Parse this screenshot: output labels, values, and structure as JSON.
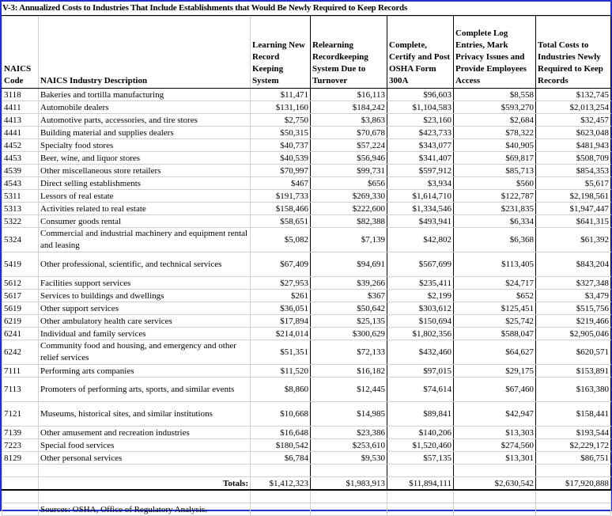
{
  "title": "V-3: Annualized Costs to Industries That Include Establishments that Would Be Newly Required to Keep Records",
  "headers": [
    "NAICS Code",
    "NAICS Industry Description",
    "Learning New Record Keeping System",
    "Relearning Recordkeeping System Due to Turnover",
    "Complete, Certify and Post OSHA Form 300A",
    "Complete Log Entries, Mark Privacy Issues and Provide Employees Access",
    "Total Costs to Industries Newly Required to Keep Records"
  ],
  "rows": [
    [
      "3118",
      "Bakeries and tortilla manufacturing",
      "$11,471",
      "$16,113",
      "$96,603",
      "$8,558",
      "$132,745"
    ],
    [
      "4411",
      "Automobile dealers",
      "$131,160",
      "$184,242",
      "$1,104,583",
      "$593,270",
      "$2,013,254"
    ],
    [
      "4413",
      "Automotive parts, accessories, and tire stores",
      "$2,750",
      "$3,863",
      "$23,160",
      "$2,684",
      "$32,457"
    ],
    [
      "4441",
      "Building material and supplies dealers",
      "$50,315",
      "$70,678",
      "$423,733",
      "$78,322",
      "$623,048"
    ],
    [
      "4452",
      "Specialty food stores",
      "$40,737",
      "$57,224",
      "$343,077",
      "$40,905",
      "$481,943"
    ],
    [
      "4453",
      "Beer, wine, and liquor stores",
      "$40,539",
      "$56,946",
      "$341,407",
      "$69,817",
      "$508,709"
    ],
    [
      "4539",
      "Other miscellaneous store retailers",
      "$70,997",
      "$99,731",
      "$597,912",
      "$85,713",
      "$854,353"
    ],
    [
      "4543",
      "Direct selling establishments",
      "$467",
      "$656",
      "$3,934",
      "$560",
      "$5,617"
    ],
    [
      "5311",
      "Lessors of real estate",
      "$191,733",
      "$269,330",
      "$1,614,710",
      "$122,787",
      "$2,198,561"
    ],
    [
      "5313",
      "Activities related to real estate",
      "$158,466",
      "$222,600",
      "$1,334,546",
      "$231,835",
      "$1,947,447"
    ],
    [
      "5322",
      "Consumer goods rental",
      "$58,651",
      "$82,388",
      "$493,941",
      "$6,334",
      "$641,315"
    ],
    [
      "5324",
      "Commercial and industrial machinery and equipment rental and leasing",
      "$5,082",
      "$7,139",
      "$42,802",
      "$6,368",
      "$61,392"
    ],
    [
      "5419",
      "Other professional, scientific, and technical services",
      "$67,409",
      "$94,691",
      "$567,699",
      "$113,405",
      "$843,204"
    ],
    [
      "5612",
      "Facilities support services",
      "$27,953",
      "$39,266",
      "$235,411",
      "$24,717",
      "$327,348"
    ],
    [
      "5617",
      "Services to buildings and dwellings",
      "$261",
      "$367",
      "$2,199",
      "$652",
      "$3,479"
    ],
    [
      "5619",
      "Other support services",
      "$36,051",
      "$50,642",
      "$303,612",
      "$125,451",
      "$515,756"
    ],
    [
      "6219",
      "Other ambulatory health care services",
      "$17,894",
      "$25,135",
      "$150,694",
      "$25,742",
      "$219,466"
    ],
    [
      "6241",
      "Individual and family services",
      "$214,014",
      "$300,629",
      "$1,802,356",
      "$588,047",
      "$2,905,046"
    ],
    [
      "6242",
      "Community food and housing, and emergency and other relief services",
      "$51,351",
      "$72,133",
      "$432,460",
      "$64,627",
      "$620,571"
    ],
    [
      "7111",
      "Performing arts companies",
      "$11,520",
      "$16,182",
      "$97,015",
      "$29,175",
      "$153,891"
    ],
    [
      "7113",
      "Promoters of performing arts, sports, and similar events",
      "$8,860",
      "$12,445",
      "$74,614",
      "$67,460",
      "$163,380"
    ],
    [
      "7121",
      "Museums, historical sites, and similar institutions",
      "$10,668",
      "$14,985",
      "$89,841",
      "$42,947",
      "$158,441"
    ],
    [
      "7139",
      "Other amusement and recreation industries",
      "$16,648",
      "$23,386",
      "$140,206",
      "$13,303",
      "$193,544"
    ],
    [
      "7223",
      "Special food services",
      "$180,542",
      "$253,610",
      "$1,520,460",
      "$274,560",
      "$2,229,172"
    ],
    [
      "8129",
      "Other personal services",
      "$6,784",
      "$9,530",
      "$57,135",
      "$13,301",
      "$86,751"
    ]
  ],
  "totals": {
    "label": "Totals:",
    "values": [
      "$1,412,323",
      "$1,983,913",
      "$11,894,111",
      "$2,630,542",
      "$17,920,888"
    ]
  },
  "source": "Sources:  OSHA, Office of Regulatory Analysis."
}
